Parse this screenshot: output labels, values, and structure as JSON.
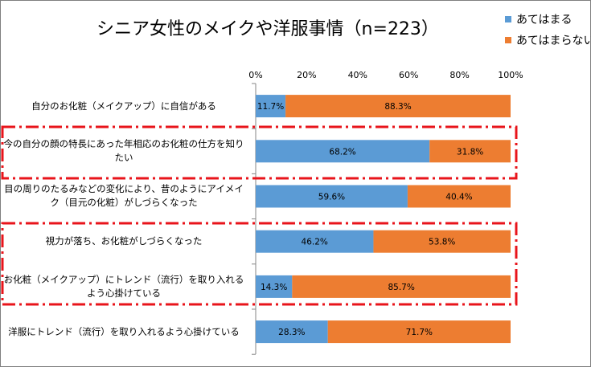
{
  "chart_data": {
    "type": "bar",
    "orientation": "horizontal",
    "stacked": "percent",
    "title": "シニア女性のメイクや洋服事情（n=223）",
    "categories": [
      "自分のお化粧（メイクアップ）に自信がある",
      "今の自分の顔の特長にあった年相応のお化粧の仕方を知りたい",
      "目の周りのたるみなどの変化により、昔のようにアイメイク（目元の化粧）がしづらくなった",
      "視力が落ち、お化粧がしづらくなった",
      "お化粧（メイクアップ）にトレンド（流行）を取り入れるよう心掛けている",
      "洋服にトレンド（流行）を取り入れるよう心掛けている"
    ],
    "series": [
      {
        "name": "あてはまる",
        "color": "#5b9bd5",
        "values": [
          11.7,
          68.2,
          59.6,
          46.2,
          14.3,
          28.3
        ],
        "labels": [
          "11.7%",
          "68.2%",
          "59.6%",
          "46.2%",
          "14.3%",
          "28.3%"
        ]
      },
      {
        "name": "あてはまらない",
        "color": "#ed7d31",
        "values": [
          88.3,
          31.8,
          40.4,
          53.8,
          85.7,
          71.7
        ],
        "labels": [
          "88.3%",
          "31.8%",
          "40.4%",
          "53.8%",
          "85.7%",
          "71.7%"
        ]
      }
    ],
    "xlim": [
      0,
      100
    ],
    "xticks": [
      "0%",
      "20%",
      "40%",
      "60%",
      "80%",
      "100%"
    ],
    "legend_position": "top-right",
    "grid": false,
    "highlight_color": "#e8141b"
  }
}
